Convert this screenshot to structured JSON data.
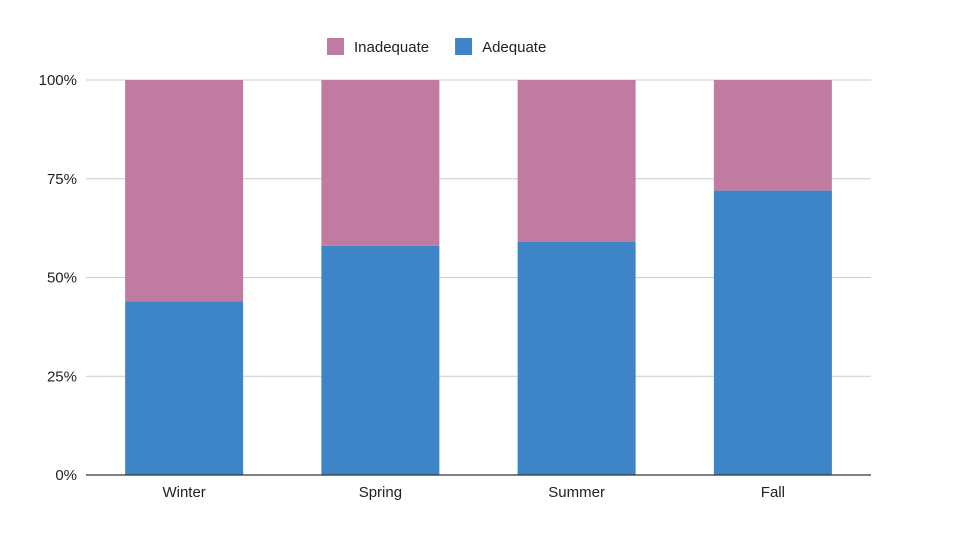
{
  "chart_data": {
    "type": "bar",
    "stacked": true,
    "normalized": true,
    "categories": [
      "Winter",
      "Spring",
      "Summer",
      "Fall"
    ],
    "series": [
      {
        "name": "Adequate",
        "color": "#3d85c6",
        "values": [
          44,
          58,
          59,
          72
        ]
      },
      {
        "name": "Inadequate",
        "color": "#c27ba0",
        "values": [
          56,
          42,
          41,
          28
        ]
      }
    ],
    "legend_order": [
      "Inadequate",
      "Adequate"
    ],
    "legend_position": "top",
    "ylim": [
      0,
      100
    ],
    "y_ticks": [
      "0%",
      "25%",
      "50%",
      "75%",
      "100%"
    ],
    "y_tick_values": [
      0,
      25,
      50,
      75,
      100
    ],
    "grid": true,
    "title": "",
    "xlabel": "",
    "ylabel": ""
  }
}
